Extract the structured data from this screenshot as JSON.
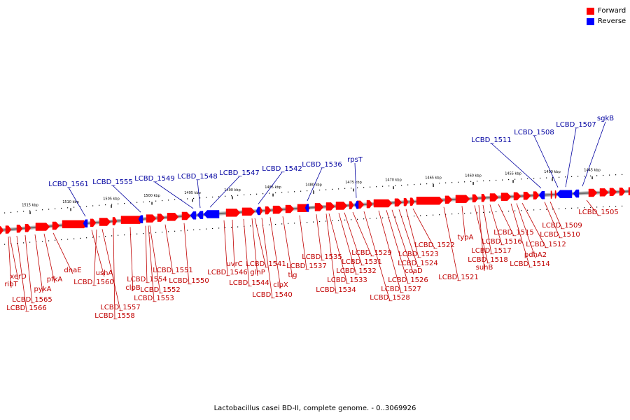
{
  "colors": {
    "forward": "#ff0000",
    "reverse": "#0000ff",
    "forward_label": "#c00000",
    "reverse_label": "#0000a0"
  },
  "legend": [
    {
      "label": "Forward",
      "color": "#ff0000"
    },
    {
      "label": "Reverse",
      "color": "#0000ff"
    }
  ],
  "caption": "Lactobacillus casei BD-II, complete genome. - 0..3069926",
  "scale": [
    {
      "label": "1515 kbp",
      "pos_kbp": 1515
    },
    {
      "label": "1510 kbp",
      "pos_kbp": 1510
    },
    {
      "label": "1505 kbp",
      "pos_kbp": 1505
    },
    {
      "label": "1500 kbp",
      "pos_kbp": 1500
    },
    {
      "label": "1495 kbp",
      "pos_kbp": 1495
    },
    {
      "label": "1490 kbp",
      "pos_kbp": 1490
    },
    {
      "label": "1485 kbp",
      "pos_kbp": 1485
    },
    {
      "label": "1480 kbp",
      "pos_kbp": 1480
    },
    {
      "label": "1475 kbp",
      "pos_kbp": 1475
    },
    {
      "label": "1470 kbp",
      "pos_kbp": 1470
    },
    {
      "label": "1465 kbp",
      "pos_kbp": 1465
    },
    {
      "label": "1460 kbp",
      "pos_kbp": 1460
    },
    {
      "label": "1455 kbp",
      "pos_kbp": 1455
    },
    {
      "label": "1450 kbp",
      "pos_kbp": 1450
    },
    {
      "label": "1445 kbp",
      "pos_kbp": 1445
    }
  ],
  "reverse_genes": [
    "LCBD_1561",
    "LCBD_1555",
    "LCBD_1549",
    "LCBD_1548",
    "LCBD_1547",
    "LCBD_1542",
    "LCBD_1536",
    "rpsT",
    "LCBD_1511",
    "LCBD_1508",
    "LCBD_1507",
    "sgkB"
  ],
  "forward_genes": [
    "xerD",
    "ribT",
    "LCBD_1565",
    "LCBD_1566",
    "pykA",
    "pfkA",
    "dnaE",
    "ushA",
    "LCBD_1560",
    "LCBD_1557",
    "LCBD_1558",
    "clpB",
    "LCBD_1554",
    "LCBD_1552",
    "LCBD_1553",
    "LCBD_1551",
    "LCBD_1550",
    "uvrC",
    "LCBD_1546",
    "LCBD_1544",
    "glnP",
    "LCBD_1541",
    "clpX",
    "LCBD_1540",
    "tig",
    "LCBD_1537",
    "LCBD_1535",
    "LCBD_1533",
    "LCBD_1534",
    "LCBD_1532",
    "LCBD_1531",
    "LCBD_1529",
    "LCBD_1528",
    "LCBD_1527",
    "LCBD_1526",
    "coaD",
    "LCBD_1524",
    "LCBD_1523",
    "LCBD_1522",
    "LCBD_1521",
    "typA",
    "LCBD_1518",
    "suhB",
    "LCBD_1517",
    "LCBD_1516",
    "LCBD_1515",
    "LCBD_1514",
    "pdhA2",
    "LCBD_1512",
    "LCBD_1510",
    "LCBD_1509",
    "LCBD_1505"
  ]
}
